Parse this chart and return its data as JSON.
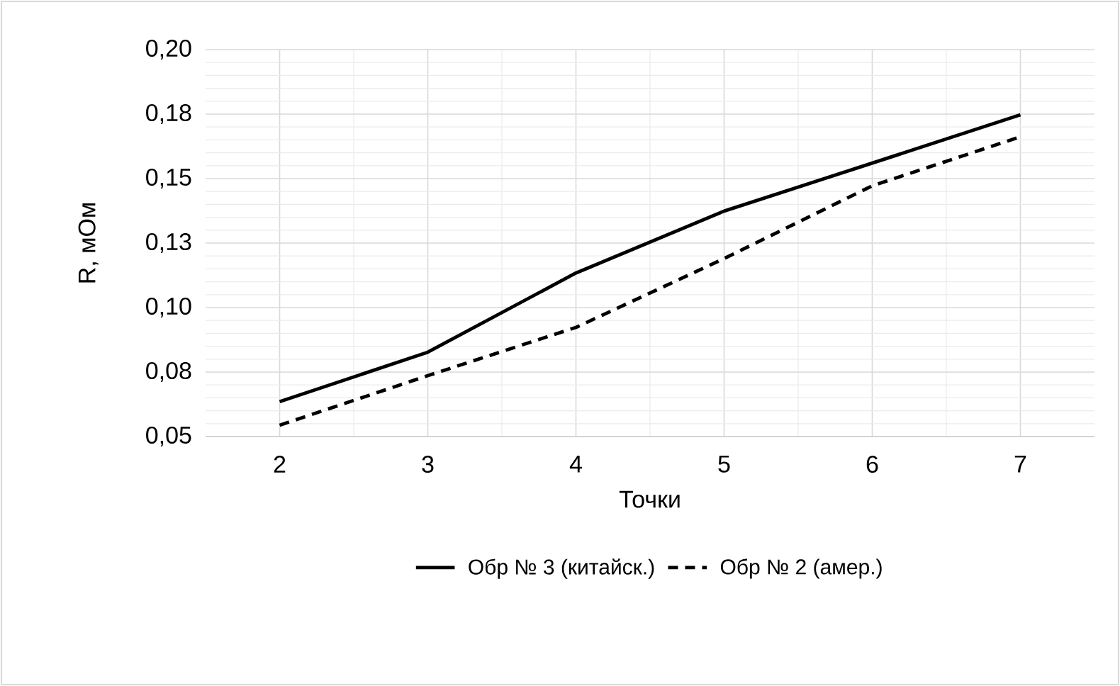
{
  "chart_data": {
    "type": "line",
    "xlabel": "Точки",
    "ylabel": "R, мОм",
    "categories": [
      "2",
      "3",
      "4",
      "5",
      "6",
      "7"
    ],
    "ylim": [
      0.05,
      0.2
    ],
    "yticks": [
      {
        "value": 0.05,
        "label": "0,05"
      },
      {
        "value": 0.075,
        "label": "0,08"
      },
      {
        "value": 0.1,
        "label": "0,10"
      },
      {
        "value": 0.125,
        "label": "0,13"
      },
      {
        "value": 0.15,
        "label": "0,15"
      },
      {
        "value": 0.175,
        "label": "0,18"
      },
      {
        "value": 0.2,
        "label": "0,20"
      }
    ],
    "grid": true,
    "legend": "bottom",
    "marker": "none",
    "series": [
      {
        "name": "Обр № 3 (китайск.)",
        "color": "#000000",
        "line_style": "solid",
        "values": [
          0.0635,
          0.0827,
          0.1134,
          0.1374,
          0.156,
          0.1747
        ]
      },
      {
        "name": "Обр № 2 (амер.)",
        "color": "#000000",
        "line_style": "dashed",
        "values": [
          0.0544,
          0.0736,
          0.0923,
          0.119,
          0.1472,
          0.1662
        ]
      }
    ]
  }
}
